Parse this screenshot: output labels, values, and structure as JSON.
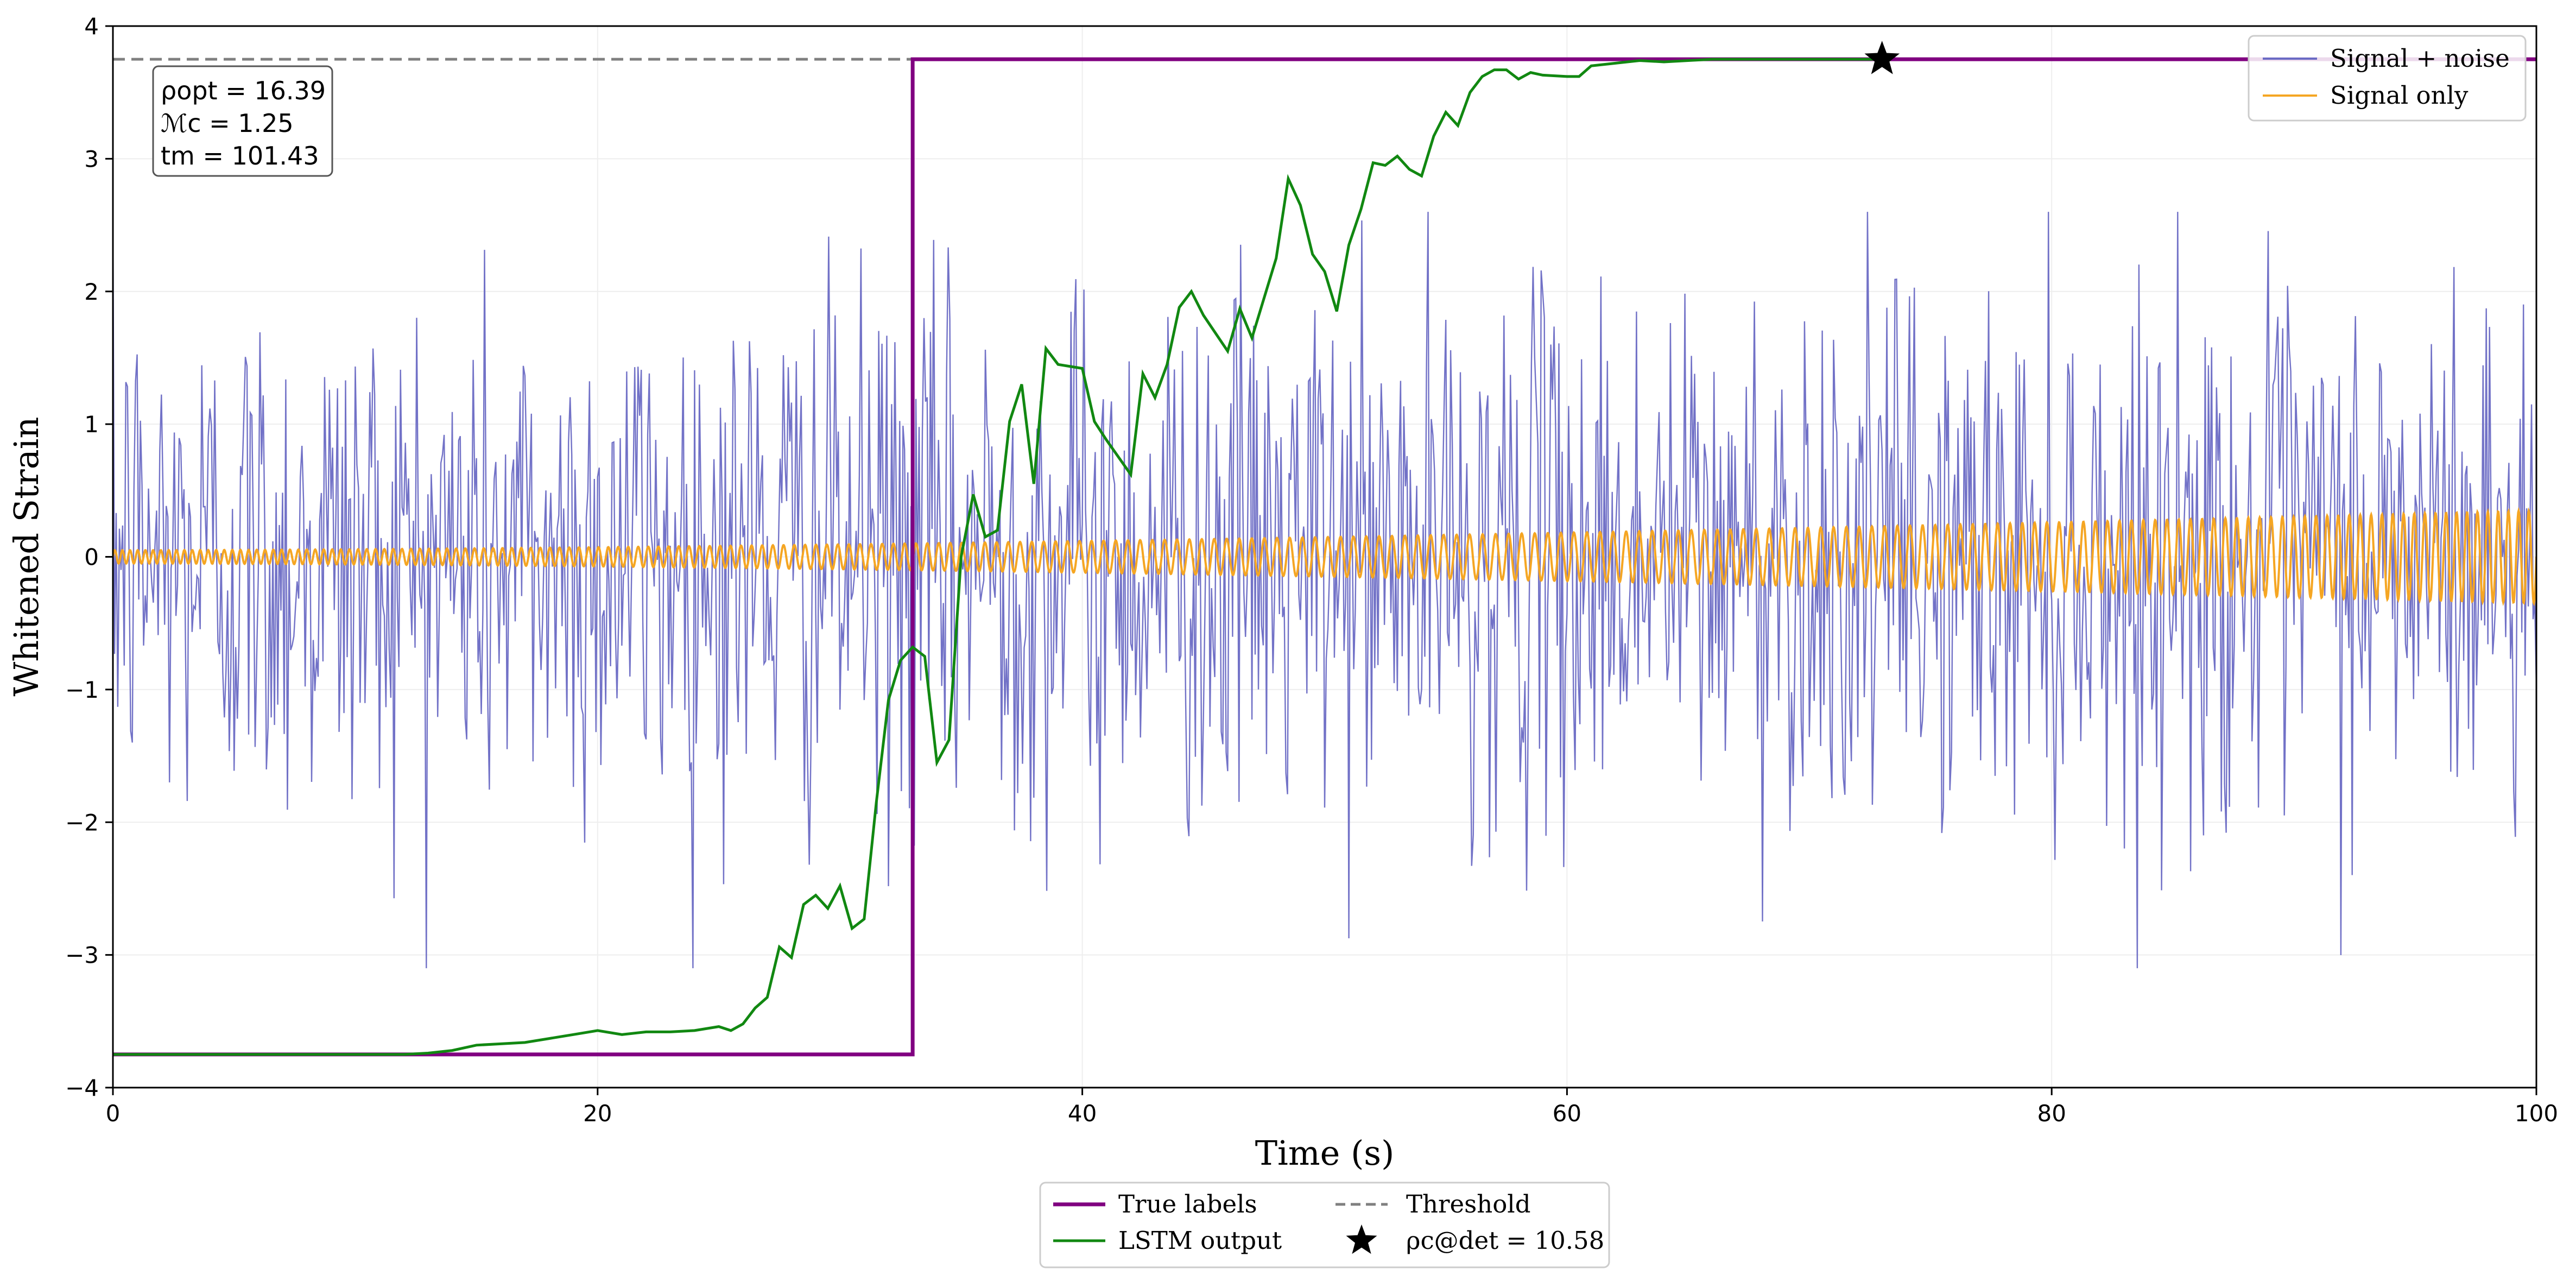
{
  "chart_data": {
    "type": "line",
    "xlabel": "Time (s)",
    "ylabel": "Whitened Strain",
    "xlim": [
      0,
      100
    ],
    "ylim": [
      -4,
      4
    ],
    "grid": true,
    "x_ticks": [
      0,
      20,
      40,
      60,
      80,
      100
    ],
    "x_tick_labels": [
      "0",
      "20",
      "40",
      "60",
      "80",
      "100"
    ],
    "y_ticks": [
      -4,
      -3,
      -2,
      -1,
      0,
      1,
      2,
      3,
      4
    ],
    "y_tick_labels": [
      "−4",
      "−3",
      "−2",
      "−1",
      "0",
      "1",
      "2",
      "3",
      "4"
    ],
    "annotation": {
      "lines": [
        "ρopt = 16.39",
        "ℳc = 1.25",
        "tm = 101.43"
      ],
      "placement": "top-left"
    },
    "series": [
      {
        "name": "Signal + noise",
        "style": "thin-line",
        "color": "#6a6ac4",
        "description": "noisy whitened strain, amplitude mostly within about ±2.5, sampled at roughly 15 samples per second over 0–100 s",
        "sample_rate_per_s": 15,
        "typical_amplitude": 1.0,
        "peak_range": [
          -3.1,
          2.6
        ]
      },
      {
        "name": "Signal only",
        "style": "line",
        "color": "#f5a623",
        "description": "chirp signal, amplitude growing from about 0.05 at t=0 to about 0.35 at t=100 with increasing oscillation period near the end",
        "amplitude_start": 0.05,
        "amplitude_end": 0.35
      },
      {
        "name": "True labels",
        "style": "step",
        "color": "#800080",
        "x": [
          0,
          33,
          33,
          100
        ],
        "y": [
          -3.75,
          -3.75,
          3.75,
          3.75
        ]
      },
      {
        "name": "LSTM output",
        "style": "line",
        "color": "#118811",
        "x": [
          0,
          12,
          13,
          14,
          15,
          16,
          17,
          18,
          19,
          20,
          21,
          22,
          23,
          24,
          25,
          25.5,
          26,
          26.5,
          27,
          27.5,
          28,
          28.5,
          29,
          29.5,
          30,
          30.5,
          31,
          31.5,
          32,
          32.5,
          33,
          33.5,
          34,
          34.5,
          35,
          35.5,
          36,
          36.5,
          37,
          37.5,
          38,
          38.5,
          39,
          40,
          40.5,
          41,
          42,
          42.5,
          43,
          43.5,
          44,
          44.5,
          45,
          46,
          46.5,
          47,
          47.5,
          48,
          48.5,
          49,
          49.5,
          50,
          50.5,
          51,
          51.5,
          52,
          52.5,
          53,
          53.5,
          54,
          54.5,
          55,
          55.5,
          56,
          56.5,
          57,
          57.5,
          58,
          58.5,
          59,
          60,
          60.5,
          61,
          62,
          63,
          64,
          65,
          66,
          67,
          68,
          70,
          72,
          73
        ],
        "y": [
          -3.75,
          -3.75,
          -3.74,
          -3.72,
          -3.68,
          -3.67,
          -3.66,
          -3.63,
          -3.6,
          -3.57,
          -3.6,
          -3.58,
          -3.58,
          -3.57,
          -3.54,
          -3.57,
          -3.52,
          -3.4,
          -3.32,
          -2.94,
          -3.02,
          -2.62,
          -2.55,
          -2.65,
          -2.48,
          -2.8,
          -2.73,
          -1.85,
          -1.08,
          -0.78,
          -0.68,
          -0.75,
          -1.55,
          -1.38,
          0.0,
          0.47,
          0.15,
          0.2,
          1.02,
          1.3,
          0.55,
          1.57,
          1.45,
          1.42,
          1.02,
          0.88,
          0.62,
          1.38,
          1.2,
          1.45,
          1.88,
          2.0,
          1.82,
          1.55,
          1.87,
          1.65,
          1.95,
          2.25,
          2.85,
          2.65,
          2.28,
          2.15,
          1.85,
          2.35,
          2.62,
          2.97,
          2.95,
          3.02,
          2.92,
          2.87,
          3.17,
          3.35,
          3.25,
          3.5,
          3.62,
          3.67,
          3.67,
          3.6,
          3.65,
          3.63,
          3.62,
          3.62,
          3.7,
          3.72,
          3.74,
          3.73,
          3.74,
          3.75,
          3.75,
          3.75,
          3.75,
          3.75,
          3.75
        ]
      },
      {
        "name": "Threshold",
        "style": "dashed",
        "color": "#808080",
        "y": 3.75
      },
      {
        "name": "ρc@det = 10.58",
        "style": "star-marker",
        "color": "#000000",
        "x": 73,
        "y": 3.75
      }
    ],
    "legends": [
      {
        "placement": "top-right",
        "entries": [
          "Signal + noise",
          "Signal only"
        ]
      },
      {
        "placement": "bottom-center",
        "entries": [
          "True labels",
          "LSTM output",
          "Threshold",
          "ρc@det = 10.58"
        ]
      }
    ]
  }
}
